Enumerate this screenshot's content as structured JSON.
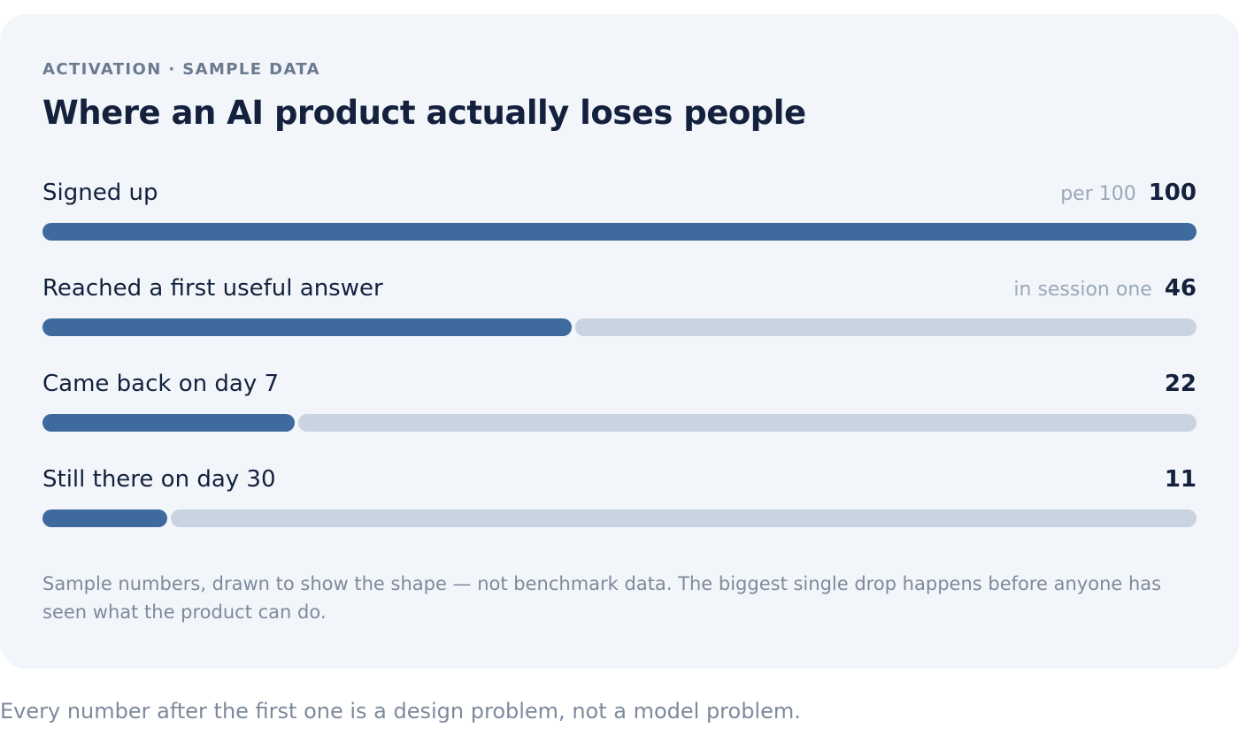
{
  "card": {
    "eyebrow": "ACTIVATION · SAMPLE DATA",
    "title": "Where an AI product actually loses people",
    "footnote": "Sample numbers, drawn to show the shape — not benchmark data. The biggest single drop happens before anyone has seen what the product can do."
  },
  "caption": "Every number after the first one is a design problem, not a model problem.",
  "colors": {
    "fill": "#3e6a9e",
    "remainder": "#c9d4e0",
    "card_background": "#f2f6fa",
    "title": "#14213d"
  },
  "chart_data": {
    "type": "bar",
    "orientation": "horizontal",
    "max": 100,
    "categories": [
      "Signed up",
      "Reached a first useful answer",
      "Came back on day 7",
      "Still there on day 30"
    ],
    "notes": [
      "per 100",
      "in session one",
      "",
      ""
    ],
    "values": [
      100,
      46,
      22,
      11
    ],
    "value_labels": [
      "100",
      "46",
      "22",
      "11"
    ]
  }
}
